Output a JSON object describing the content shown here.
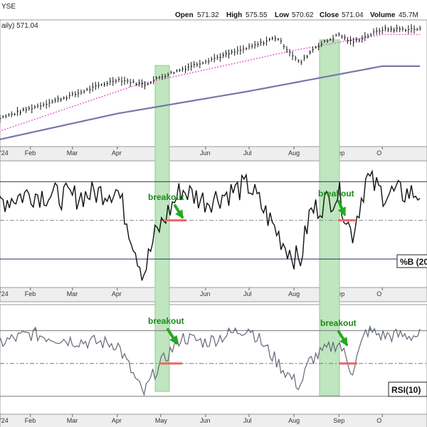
{
  "header": {
    "exchange": "YSE",
    "open_label": "Open",
    "open": "571.32",
    "high_label": "High",
    "high": "575.55",
    "low_label": "Low",
    "low": "570.62",
    "close_label": "Close",
    "close": "571.04",
    "volume_label": "Volume",
    "volume": "45.7M",
    "price_label": "aily) 571.04"
  },
  "colors": {
    "price": "#111111",
    "sma_short": "#ee66dd",
    "sma_long": "#7777aa",
    "highlight": "#bfe6bf",
    "arrow": "#22aa22",
    "breakout_line": "#ee6666",
    "grid": "#cccccc",
    "rsi_fill": "#6f9f9f",
    "rsi_line": "#666677"
  },
  "chart_data": [
    {
      "type": "line",
      "panel": "price",
      "title": "",
      "series": [
        {
          "name": "",
          "points": [
            [
              "Jan 1",
              545
            ],
            [
              "Feb 1",
              556
            ],
            [
              "Mar 1",
              566
            ],
            [
              "Apr 1",
              578
            ],
            [
              "Apr 20",
              574
            ],
            [
              "May 1",
              580
            ],
            [
              "Jun 1",
              592
            ],
            [
              "Jul 1",
              602
            ],
            [
              "Jul 20",
              610
            ],
            [
              "Aug 5",
              590
            ],
            [
              "Aug 15",
              602
            ],
            [
              "Sep 1",
              612
            ],
            [
              "Sep 10",
              606
            ],
            [
              "Oct 1",
              616
            ]
          ]
        },
        {
          "name": "",
          "points": [
            [
              "Jan 1",
              535
            ],
            [
              "Apr 15",
              574
            ],
            [
              "Aug 1",
              600
            ],
            [
              "Oct 1",
              612
            ]
          ]
        },
        {
          "name": "",
          "points": [
            [
              "Jan 1",
              530
            ],
            [
              "Apr 1",
              552
            ],
            [
              "Jul 1",
              569
            ],
            [
              "Oct 1",
              588
            ]
          ]
        }
      ],
      "x_labels": [
        "'24",
        "Feb",
        "Mar",
        "Apr",
        "May",
        "Jun",
        "Jul",
        "Aug",
        "Sep",
        "O"
      ]
    },
    {
      "type": "line",
      "panel": "percent_b",
      "title": "%B (20",
      "levels": [
        1.0,
        0.5,
        0.0
      ],
      "series": [
        {
          "name": "",
          "points": [
            [
              "Jan 1",
              0.7
            ],
            [
              "Feb 1",
              0.85
            ],
            [
              "Mar 1",
              0.8
            ],
            [
              "Apr 1",
              0.9
            ],
            [
              "Apr 19",
              -0.2
            ],
            [
              "Apr 27",
              0.3
            ],
            [
              "May 15",
              0.9
            ],
            [
              "Jun 1",
              0.75
            ],
            [
              "Jul 1",
              0.95
            ],
            [
              "Jul 25",
              0.2
            ],
            [
              "Aug 5",
              -0.05
            ],
            [
              "Aug 12",
              0.6
            ],
            [
              "Sep 1",
              0.85
            ],
            [
              "Sep 10",
              0.3
            ],
            [
              "Sep 20",
              1.05
            ],
            [
              "Oct 1",
              0.85
            ]
          ]
        }
      ],
      "annotation": "breakout",
      "x_labels": [
        "'24",
        "Feb",
        "Mar",
        "Apr",
        "May",
        "Jun",
        "Jul",
        "Aug",
        "Sep",
        "O"
      ]
    },
    {
      "type": "area",
      "panel": "rsi",
      "title": "RSI(10)",
      "levels": [
        70,
        50,
        30
      ],
      "series": [
        {
          "name": "",
          "points": [
            [
              "Jan 1",
              60
            ],
            [
              "Feb 1",
              68
            ],
            [
              "Mar 1",
              64
            ],
            [
              "Apr 1",
              62
            ],
            [
              "Apr 19",
              31
            ],
            [
              "Apr 27",
              45
            ],
            [
              "May 15",
              66
            ],
            [
              "Jun 1",
              63
            ],
            [
              "Jul 1",
              72
            ],
            [
              "Jul 25",
              46
            ],
            [
              "Aug 5",
              36
            ],
            [
              "Aug 12",
              52
            ],
            [
              "Sep 1",
              63
            ],
            [
              "Sep 10",
              45
            ],
            [
              "Sep 20",
              70
            ],
            [
              "Oct 1",
              67
            ]
          ]
        }
      ],
      "annotation": "breakout",
      "x_labels": [
        "'24",
        "Feb",
        "Mar",
        "Apr",
        "May",
        "Jun",
        "Jul",
        "Aug",
        "Sep",
        "O"
      ]
    }
  ]
}
